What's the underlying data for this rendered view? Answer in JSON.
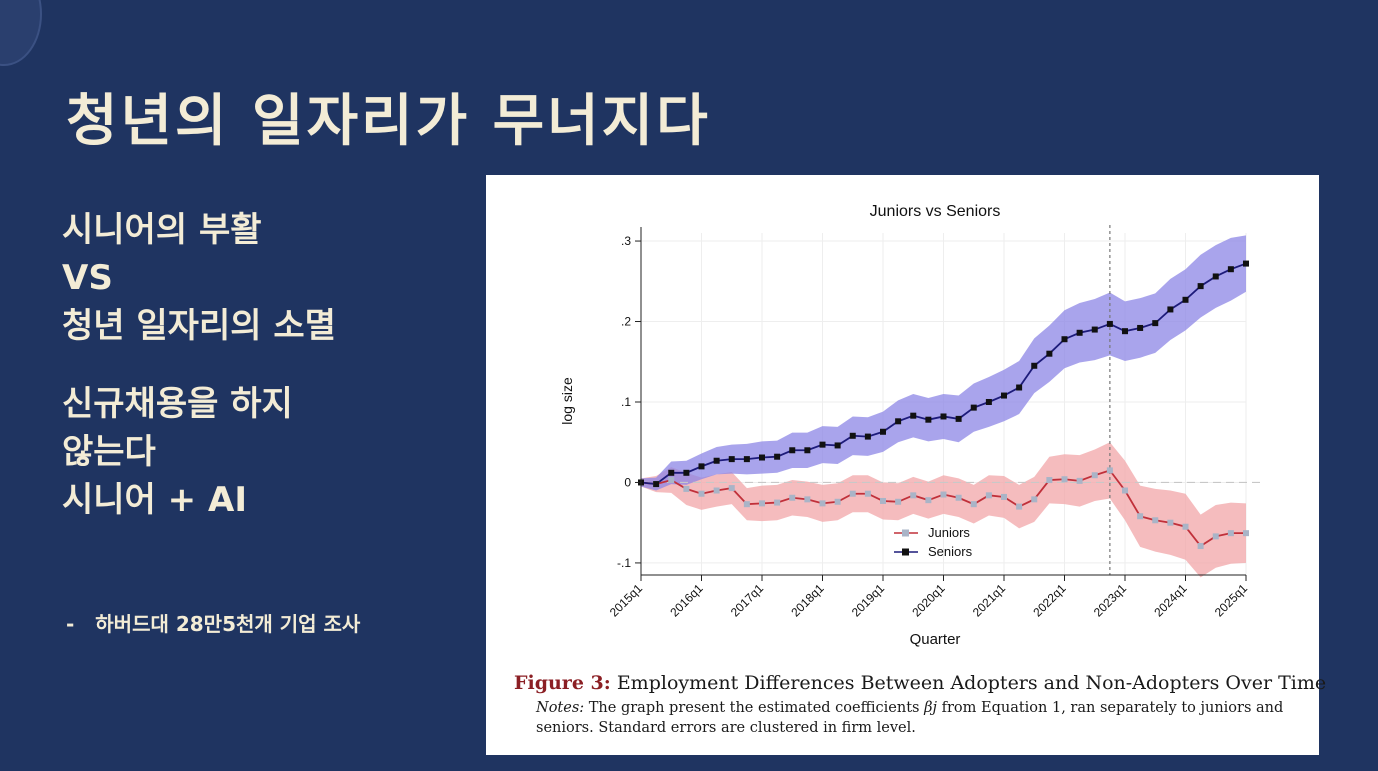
{
  "slide": {
    "title": "청년의 일자리가 무너지다",
    "lines": [
      "시니어의 부활",
      "VS",
      "청년 일자리의 소멸"
    ],
    "lines2": [
      "신규채용을 하지",
      "않는다",
      "시니어 + AI"
    ],
    "source_dash": "-",
    "source_text": "하버드대 28만5천개 기업 조사"
  },
  "colors": {
    "background": "#1f3461",
    "text": "#f3ecd6",
    "juniors": "#c0303a",
    "juniors_band": "#f2a5a8",
    "seniors": "#111111",
    "seniors_band": "#8c86e6",
    "seniors_line": "#1d1b7a"
  },
  "caption": {
    "label": "Figure 3:",
    "title": "Employment Differences Between Adopters and Non-Adopters Over Time",
    "notes_label": "Notes:",
    "notes_before": "The graph present the estimated coefficients",
    "notes_symbol": "βj",
    "notes_after": "from Equation 1, ran separately to juniors and seniors. Standard errors are clustered in firm level."
  },
  "chart_data": {
    "type": "line",
    "title": "Juniors vs Seniors",
    "xlabel": "Quarter",
    "ylabel": "log size",
    "x_tick_labels": [
      "2015q1",
      "2016q1",
      "2017q1",
      "2018q1",
      "2019q1",
      "2020q1",
      "2021q1",
      "2022q1",
      "2023q1",
      "2024q1",
      "2025q1"
    ],
    "y_ticks": [
      -0.1,
      0,
      0.1,
      0.2,
      0.3
    ],
    "y_tick_labels": [
      "-.1",
      "0",
      ".1",
      ".2",
      ".3"
    ],
    "ylim": [
      -0.115,
      0.31
    ],
    "x_start_quarter": 0,
    "x_end_quarter": 40,
    "vertical_line_quarter": 31,
    "grid": true,
    "legend_position": "bottom-center",
    "series": [
      {
        "name": "Juniors",
        "x": [
          0,
          1,
          2,
          3,
          4,
          5,
          6,
          7,
          8,
          9,
          10,
          11,
          12,
          13,
          14,
          15,
          16,
          17,
          18,
          19,
          20,
          21,
          22,
          23,
          24,
          25,
          26,
          27,
          28,
          29,
          30,
          31,
          32,
          33,
          34,
          35,
          36,
          37,
          38,
          39,
          40
        ],
        "values": [
          0,
          -0.002,
          0.003,
          -0.008,
          -0.014,
          -0.01,
          -0.007,
          -0.027,
          -0.026,
          -0.025,
          -0.019,
          -0.021,
          -0.026,
          -0.024,
          -0.014,
          -0.014,
          -0.023,
          -0.024,
          -0.016,
          -0.022,
          -0.015,
          -0.019,
          -0.027,
          -0.016,
          -0.018,
          -0.03,
          -0.021,
          0.003,
          0.004,
          0.002,
          0.009,
          0.015,
          -0.01,
          -0.042,
          -0.047,
          -0.05,
          -0.055,
          -0.079,
          -0.067,
          -0.063,
          -0.063
        ],
        "ci_lower": [
          -0.005,
          -0.012,
          -0.013,
          -0.028,
          -0.034,
          -0.03,
          -0.027,
          -0.047,
          -0.048,
          -0.047,
          -0.041,
          -0.043,
          -0.049,
          -0.047,
          -0.037,
          -0.037,
          -0.046,
          -0.047,
          -0.039,
          -0.045,
          -0.039,
          -0.043,
          -0.051,
          -0.041,
          -0.044,
          -0.057,
          -0.049,
          -0.026,
          -0.027,
          -0.03,
          -0.023,
          -0.02,
          -0.047,
          -0.08,
          -0.086,
          -0.09,
          -0.096,
          -0.118,
          -0.106,
          -0.101,
          -0.1
        ],
        "ci_upper": [
          0.005,
          0.008,
          0.019,
          0.012,
          0.006,
          0.01,
          0.013,
          -0.007,
          -0.004,
          -0.003,
          0.003,
          0.001,
          -0.003,
          -0.001,
          0.009,
          0.009,
          0,
          -0.001,
          0.007,
          0.001,
          0.009,
          0.005,
          -0.003,
          0.009,
          0.008,
          -0.003,
          0.007,
          0.032,
          0.035,
          0.034,
          0.041,
          0.05,
          0.027,
          -0.004,
          -0.008,
          -0.01,
          -0.014,
          -0.04,
          -0.028,
          -0.025,
          -0.026
        ]
      },
      {
        "name": "Seniors",
        "x": [
          0,
          1,
          2,
          3,
          4,
          5,
          6,
          7,
          8,
          9,
          10,
          11,
          12,
          13,
          14,
          15,
          16,
          17,
          18,
          19,
          20,
          21,
          22,
          23,
          24,
          25,
          26,
          27,
          28,
          29,
          30,
          31,
          32,
          33,
          34,
          35,
          36,
          37,
          38,
          39,
          40
        ],
        "values": [
          0,
          -0.002,
          0.012,
          0.012,
          0.02,
          0.027,
          0.029,
          0.029,
          0.031,
          0.032,
          0.04,
          0.04,
          0.047,
          0.046,
          0.058,
          0.057,
          0.063,
          0.076,
          0.083,
          0.078,
          0.082,
          0.079,
          0.093,
          0.1,
          0.108,
          0.118,
          0.145,
          0.16,
          0.178,
          0.186,
          0.19,
          0.197,
          0.188,
          0.192,
          0.198,
          0.215,
          0.227,
          0.244,
          0.256,
          0.265,
          0.272
        ],
        "ci_lower": [
          -0.005,
          -0.01,
          -0.002,
          -0.003,
          0.004,
          0.01,
          0.011,
          0.01,
          0.011,
          0.012,
          0.018,
          0.018,
          0.024,
          0.023,
          0.034,
          0.033,
          0.038,
          0.05,
          0.056,
          0.051,
          0.054,
          0.05,
          0.063,
          0.069,
          0.076,
          0.085,
          0.111,
          0.125,
          0.142,
          0.149,
          0.152,
          0.158,
          0.151,
          0.155,
          0.161,
          0.177,
          0.189,
          0.205,
          0.217,
          0.226,
          0.237
        ],
        "ci_upper": [
          0.005,
          0.006,
          0.026,
          0.027,
          0.036,
          0.044,
          0.047,
          0.048,
          0.051,
          0.052,
          0.062,
          0.062,
          0.07,
          0.069,
          0.082,
          0.081,
          0.088,
          0.102,
          0.11,
          0.105,
          0.11,
          0.108,
          0.123,
          0.131,
          0.14,
          0.151,
          0.179,
          0.195,
          0.214,
          0.223,
          0.228,
          0.236,
          0.225,
          0.229,
          0.235,
          0.253,
          0.265,
          0.283,
          0.295,
          0.304,
          0.307
        ]
      }
    ]
  }
}
